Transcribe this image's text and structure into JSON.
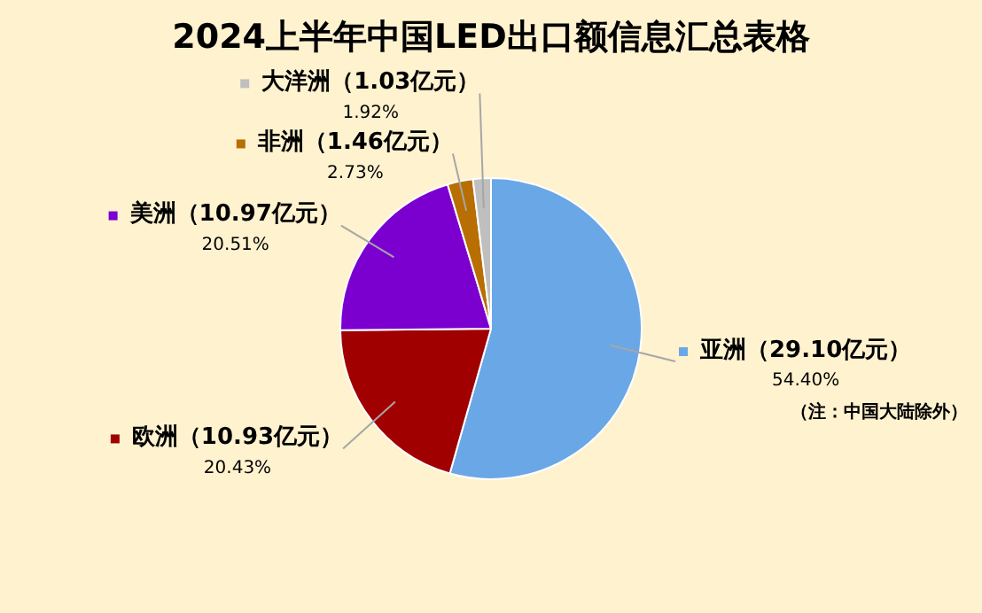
{
  "chart_data": {
    "type": "pie",
    "title": "2024上半年中国LED出口额信息汇总表格",
    "categories": [
      "亚洲（29.10亿元）",
      "欧洲（10.93亿元）",
      "美洲（10.97亿元）",
      "非洲（1.46亿元）",
      "大洋洲（1.03亿元）"
    ],
    "values": [
      54.4,
      20.43,
      20.51,
      2.73,
      1.92
    ],
    "colors": [
      "#6aa7e6",
      "#a00000",
      "#7b00d0",
      "#b86e00",
      "#bfbfbf"
    ],
    "value_labels": [
      "54.40%",
      "20.43%",
      "20.51%",
      "2.73%",
      "1.92%"
    ],
    "annotations": [
      "（注：中国大陆除外）"
    ],
    "legend": "left"
  }
}
